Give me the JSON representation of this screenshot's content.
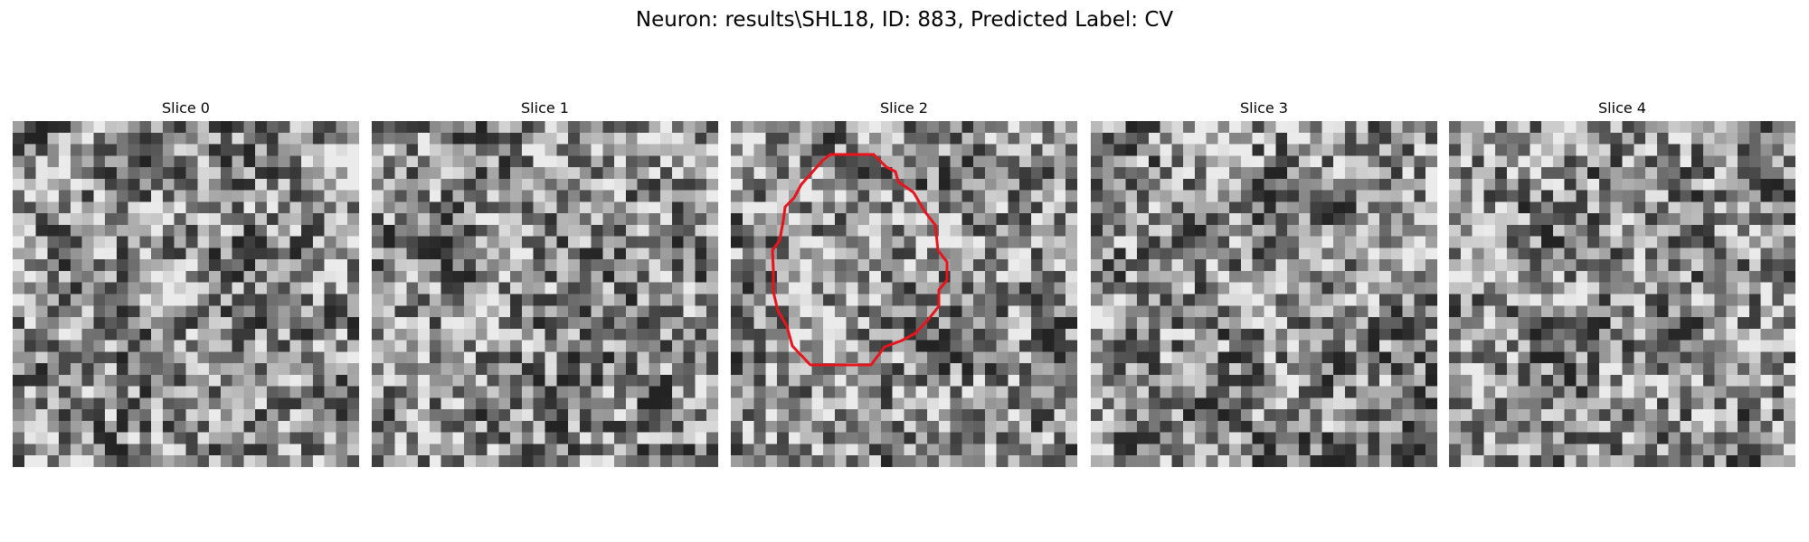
{
  "figure": {
    "title": "Neuron: results\\SHL18, ID: 883, Predicted Label: CV"
  },
  "panels": [
    {
      "title": "Slice 0",
      "has_outline": false,
      "seed": 11
    },
    {
      "title": "Slice 1",
      "has_outline": false,
      "seed": 23
    },
    {
      "title": "Slice 2",
      "has_outline": true,
      "seed": 37
    },
    {
      "title": "Slice 3",
      "has_outline": false,
      "seed": 41
    },
    {
      "title": "Slice 4",
      "has_outline": false,
      "seed": 59
    }
  ],
  "colors": {
    "outline": "#e8141b",
    "background": "#ffffff"
  },
  "image_style": "grayscale-noise-grid"
}
